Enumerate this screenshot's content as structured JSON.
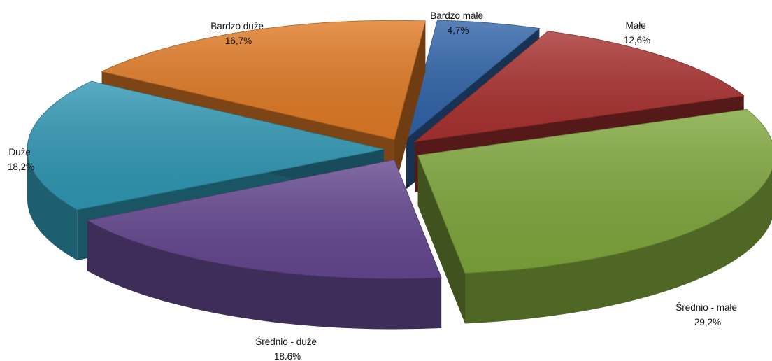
{
  "chart_data": {
    "type": "pie",
    "variant": "3d-exploded",
    "title": "",
    "legend": "none",
    "slices": [
      {
        "name": "Bardzo małe",
        "value": 4.7,
        "value_label": "4,7%",
        "color": "#2f63a8"
      },
      {
        "name": "Małe",
        "value": 12.6,
        "value_label": "12,6%",
        "color": "#a8312f"
      },
      {
        "name": "Średnio - małe",
        "value": 29.2,
        "value_label": "29,2%",
        "color": "#7fa63c"
      },
      {
        "name": "Średnio - duże",
        "value": 18.6,
        "value_label": "18.6%",
        "color": "#64478f"
      },
      {
        "name": "Duże",
        "value": 18.2,
        "value_label": "18,2%",
        "color": "#2f97b3"
      },
      {
        "name": "Bardzo duże",
        "value": 16.7,
        "value_label": "16,7%",
        "color": "#e07a25"
      }
    ]
  }
}
